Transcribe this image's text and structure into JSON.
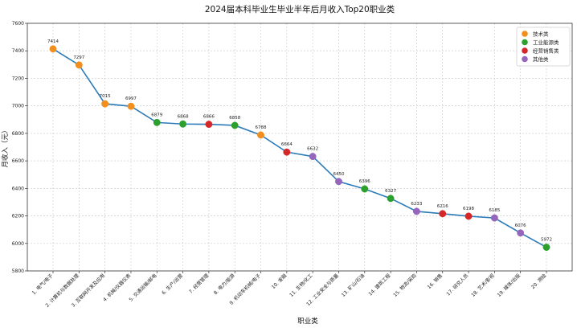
{
  "chart_data": {
    "type": "line",
    "title": "2024届本科毕业生毕业半年后月收入Top20职业类",
    "xlabel": "职业类",
    "ylabel": "月收入（元）",
    "ylim": [
      5800,
      7600
    ],
    "yticks": [
      5800,
      6000,
      6200,
      6400,
      6600,
      6800,
      7000,
      7200,
      7400,
      7600
    ],
    "grid": true,
    "legend_position": "top-right",
    "line_color": "#2b7bb9",
    "categories": [
      "1. 电气/电子",
      "2. 计算机与数据处理",
      "3. 互联网开发及应用",
      "4. 机械/仪器仪表",
      "5. 交通运输/邮电",
      "6. 生产/运营",
      "7. 经营管理",
      "8. 电力/能源",
      "9. 机动车机械/电子",
      "10. 金融",
      "11. 生物/化工",
      "12. 工业安全与质量",
      "13. 矿山/石油",
      "14. 建筑工程",
      "15. 物流/采购",
      "16. 销售",
      "17. 研究人员",
      "18. 艺术/影视",
      "19. 媒体/出版",
      "20. 测绘"
    ],
    "values": [
      7414,
      7297,
      7015,
      6997,
      6879,
      6868,
      6866,
      6858,
      6788,
      6664,
      6632,
      6450,
      6396,
      6327,
      6233,
      6216,
      6198,
      6185,
      6076,
      5972
    ],
    "point_groups": [
      "技术类",
      "技术类",
      "技术类",
      "技术类",
      "工业能源类",
      "工业能源类",
      "经营销售类",
      "工业能源类",
      "技术类",
      "经营销售类",
      "其他类",
      "其他类",
      "工业能源类",
      "工业能源类",
      "其他类",
      "经营销售类",
      "经营销售类",
      "其他类",
      "其他类",
      "工业能源类"
    ],
    "legend": [
      {
        "name": "技术类",
        "color": "#f28e1c"
      },
      {
        "name": "工业能源类",
        "color": "#2ca02c"
      },
      {
        "name": "经营销售类",
        "color": "#d62728"
      },
      {
        "name": "其他类",
        "color": "#9467bd"
      }
    ]
  }
}
